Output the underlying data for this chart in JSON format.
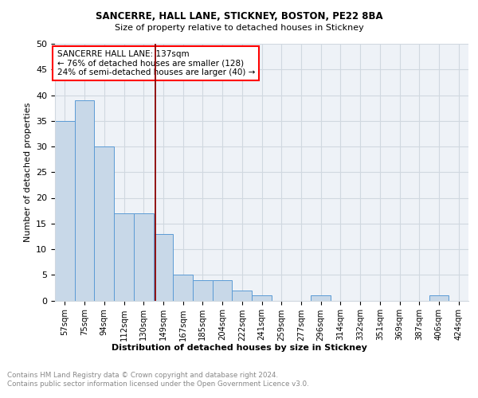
{
  "title1": "SANCERRE, HALL LANE, STICKNEY, BOSTON, PE22 8BA",
  "title2": "Size of property relative to detached houses in Stickney",
  "xlabel": "Distribution of detached houses by size in Stickney",
  "ylabel": "Number of detached properties",
  "categories": [
    "57sqm",
    "75sqm",
    "94sqm",
    "112sqm",
    "130sqm",
    "149sqm",
    "167sqm",
    "185sqm",
    "204sqm",
    "222sqm",
    "241sqm",
    "259sqm",
    "277sqm",
    "296sqm",
    "314sqm",
    "332sqm",
    "351sqm",
    "369sqm",
    "387sqm",
    "406sqm",
    "424sqm"
  ],
  "values": [
    35,
    39,
    30,
    17,
    17,
    13,
    5,
    4,
    4,
    2,
    1,
    0,
    0,
    1,
    0,
    0,
    0,
    0,
    0,
    1,
    0
  ],
  "bar_color": "#c8d8e8",
  "bar_edge_color": "#5b9bd5",
  "vline_x": 4.6,
  "vline_color": "#8b0000",
  "annotation_text": "SANCERRE HALL LANE: 137sqm\n← 76% of detached houses are smaller (128)\n24% of semi-detached houses are larger (40) →",
  "annotation_box_color": "white",
  "annotation_box_edge_color": "red",
  "footer_text": "Contains HM Land Registry data © Crown copyright and database right 2024.\nContains public sector information licensed under the Open Government Licence v3.0.",
  "ylim": [
    0,
    50
  ],
  "yticks": [
    0,
    5,
    10,
    15,
    20,
    25,
    30,
    35,
    40,
    45,
    50
  ],
  "grid_color": "#d0d8e0",
  "background_color": "#eef2f7"
}
